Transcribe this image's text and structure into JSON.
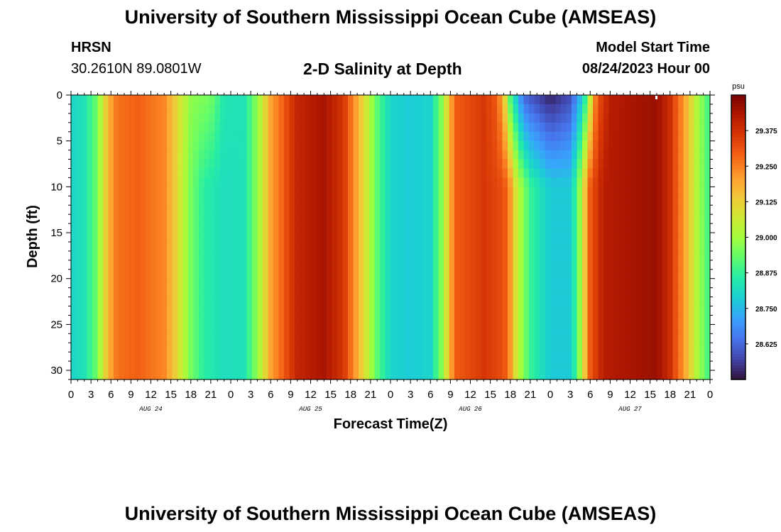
{
  "page": {
    "title": "University of Southern Mississippi Ocean Cube (AMSEAS)",
    "station": "HRSN",
    "coords": "30.2610N  89.0801W",
    "plot_title": "2-D Salinity at Depth",
    "model_label": "Model Start Time",
    "model_time": "08/24/2023 Hour 00",
    "footer_title": "University of Southern Mississippi Ocean Cube (AMSEAS)"
  },
  "chart_data": {
    "type": "heatmap",
    "title": "2-D Salinity at Depth",
    "xlabel": "Forecast Time(Z)",
    "ylabel": "Depth (ft)",
    "x_range_hours": [
      0,
      96
    ],
    "ylim": [
      0,
      31
    ],
    "x_tick_labels": [
      "0",
      "3",
      "6",
      "9",
      "12",
      "15",
      "18",
      "21",
      "0",
      "3",
      "6",
      "9",
      "12",
      "15",
      "18",
      "21",
      "0",
      "3",
      "6",
      "9",
      "12",
      "15",
      "18",
      "21",
      "0",
      "3",
      "6",
      "9",
      "12",
      "15",
      "18",
      "21",
      "0"
    ],
    "y_ticks": [
      0,
      5,
      10,
      15,
      20,
      25,
      30
    ],
    "y_tick_labels": [
      "0",
      "5",
      "10",
      "15",
      "20",
      "25",
      "30"
    ],
    "day_labels": [
      {
        "label": "AUG 24",
        "hour": 12
      },
      {
        "label": "AUG 25",
        "hour": 36
      },
      {
        "label": "AUG 26",
        "hour": 60
      },
      {
        "label": "AUG 27",
        "hour": 84
      }
    ],
    "colorbar": {
      "unit": "psu",
      "min": 28.5,
      "max": 29.5,
      "tick_values": [
        28.625,
        28.75,
        28.875,
        29.0,
        29.125,
        29.25,
        29.375
      ],
      "tick_labels": [
        "28.625",
        "28.750",
        "28.875",
        "29.000",
        "29.125",
        "29.250",
        "29.375"
      ]
    },
    "surface_salinity_psu": [
      {
        "hour": 0,
        "value": 28.8
      },
      {
        "hour": 2,
        "value": 28.83
      },
      {
        "hour": 4,
        "value": 28.95
      },
      {
        "hour": 5,
        "value": 29.1
      },
      {
        "hour": 6,
        "value": 29.2
      },
      {
        "hour": 7,
        "value": 29.27
      },
      {
        "hour": 10,
        "value": 29.29
      },
      {
        "hour": 14,
        "value": 29.24
      },
      {
        "hour": 16,
        "value": 29.1
      },
      {
        "hour": 18,
        "value": 28.98
      },
      {
        "hour": 21,
        "value": 28.95
      },
      {
        "hour": 23,
        "value": 28.84
      },
      {
        "hour": 26,
        "value": 28.83
      },
      {
        "hour": 28,
        "value": 28.98
      },
      {
        "hour": 30,
        "value": 29.2
      },
      {
        "hour": 32,
        "value": 29.3
      },
      {
        "hour": 34,
        "value": 29.4
      },
      {
        "hour": 38,
        "value": 29.44
      },
      {
        "hour": 41,
        "value": 29.36
      },
      {
        "hour": 44,
        "value": 29.1
      },
      {
        "hour": 46,
        "value": 28.92
      },
      {
        "hour": 48,
        "value": 28.8
      },
      {
        "hour": 51,
        "value": 28.78
      },
      {
        "hour": 54,
        "value": 28.8
      },
      {
        "hour": 56,
        "value": 29.0
      },
      {
        "hour": 57,
        "value": 29.2
      },
      {
        "hour": 58,
        "value": 29.3
      },
      {
        "hour": 62,
        "value": 29.36
      },
      {
        "hour": 64,
        "value": 29.3
      },
      {
        "hour": 65,
        "value": 29.15
      },
      {
        "hour": 66,
        "value": 28.9
      },
      {
        "hour": 68,
        "value": 28.62
      },
      {
        "hour": 72,
        "value": 28.52
      },
      {
        "hour": 75,
        "value": 28.58
      },
      {
        "hour": 77,
        "value": 28.8
      },
      {
        "hour": 78,
        "value": 29.05
      },
      {
        "hour": 79,
        "value": 29.3
      },
      {
        "hour": 81,
        "value": 29.42
      },
      {
        "hour": 88,
        "value": 29.46
      },
      {
        "hour": 90,
        "value": 29.38
      },
      {
        "hour": 92,
        "value": 29.22
      },
      {
        "hour": 94,
        "value": 29.02
      },
      {
        "hour": 96,
        "value": 28.88
      }
    ],
    "deep_salinity_psu": [
      {
        "hour": 0,
        "value": 28.8
      },
      {
        "hour": 2,
        "value": 28.83
      },
      {
        "hour": 4,
        "value": 28.95
      },
      {
        "hour": 5,
        "value": 29.1
      },
      {
        "hour": 6,
        "value": 29.2
      },
      {
        "hour": 7,
        "value": 29.27
      },
      {
        "hour": 10,
        "value": 29.29
      },
      {
        "hour": 14,
        "value": 29.24
      },
      {
        "hour": 16,
        "value": 29.1
      },
      {
        "hour": 18,
        "value": 28.95
      },
      {
        "hour": 20,
        "value": 28.86
      },
      {
        "hour": 23,
        "value": 28.82
      },
      {
        "hour": 26,
        "value": 28.83
      },
      {
        "hour": 28,
        "value": 28.98
      },
      {
        "hour": 30,
        "value": 29.2
      },
      {
        "hour": 32,
        "value": 29.3
      },
      {
        "hour": 34,
        "value": 29.4
      },
      {
        "hour": 38,
        "value": 29.44
      },
      {
        "hour": 41,
        "value": 29.36
      },
      {
        "hour": 44,
        "value": 29.1
      },
      {
        "hour": 46,
        "value": 28.92
      },
      {
        "hour": 48,
        "value": 28.8
      },
      {
        "hour": 51,
        "value": 28.78
      },
      {
        "hour": 54,
        "value": 28.8
      },
      {
        "hour": 56,
        "value": 29.0
      },
      {
        "hour": 57,
        "value": 29.2
      },
      {
        "hour": 58,
        "value": 29.3
      },
      {
        "hour": 62,
        "value": 29.36
      },
      {
        "hour": 65,
        "value": 29.32
      },
      {
        "hour": 66,
        "value": 29.22
      },
      {
        "hour": 67,
        "value": 29.05
      },
      {
        "hour": 69,
        "value": 28.88
      },
      {
        "hour": 72,
        "value": 28.78
      },
      {
        "hour": 75,
        "value": 28.78
      },
      {
        "hour": 76,
        "value": 28.9
      },
      {
        "hour": 77,
        "value": 29.1
      },
      {
        "hour": 78,
        "value": 29.3
      },
      {
        "hour": 80,
        "value": 29.42
      },
      {
        "hour": 88,
        "value": 29.46
      },
      {
        "hour": 90,
        "value": 29.38
      },
      {
        "hour": 92,
        "value": 29.22
      },
      {
        "hour": 94,
        "value": 29.02
      },
      {
        "hour": 96,
        "value": 28.88
      }
    ],
    "colormap": [
      "#30123b",
      "#4145ab",
      "#4675ed",
      "#39a2fc",
      "#1bcfd4",
      "#24eca6",
      "#61fc6c",
      "#a4fc3b",
      "#d1e834",
      "#f3c63a",
      "#fe9b2d",
      "#f36315",
      "#d93806",
      "#b11901",
      "#7a0402"
    ]
  }
}
